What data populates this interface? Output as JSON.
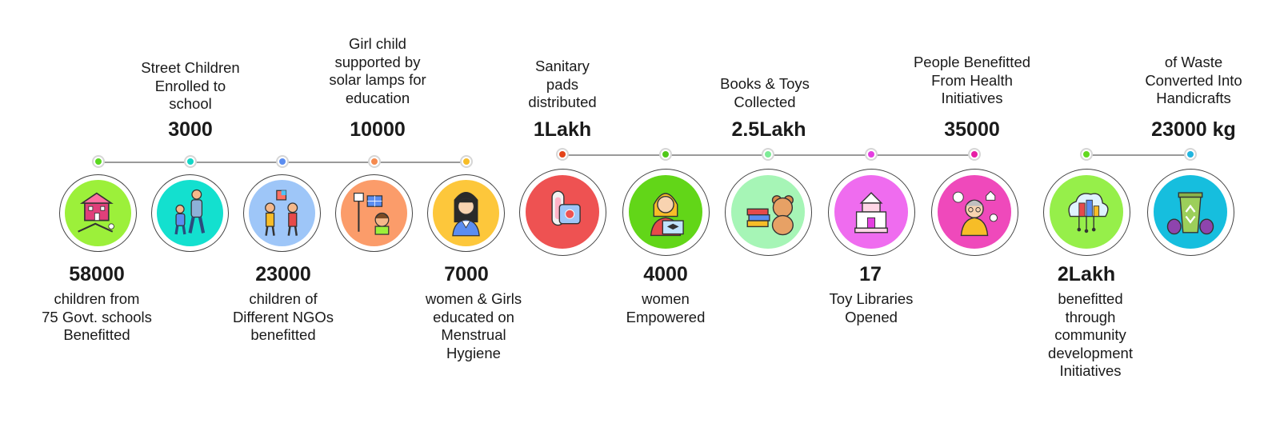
{
  "colors": {
    "line": "#9a9a9a",
    "text": "#1a1a1a"
  },
  "items": [
    {
      "value": "58000",
      "label": [
        "children from",
        "75 Govt. schools",
        "Benefitted"
      ],
      "color": "#9cf03a",
      "dot": "#5bd821",
      "icon": "school-playground-icon"
    },
    {
      "value": "3000",
      "label": [
        "Street Children",
        "Enrolled to",
        "school"
      ],
      "color": "#13e0cf",
      "dot": "#13d6c6",
      "icon": "parent-child-walking-icon"
    },
    {
      "value": "23000",
      "label": [
        "children of",
        "Different NGOs",
        "benefitted"
      ],
      "color": "#9ec6f8",
      "dot": "#5b8df0",
      "icon": "children-playing-icon"
    },
    {
      "value": "10000",
      "label": [
        "Girl child",
        "supported by",
        "solar lamps for",
        "education"
      ],
      "color": "#fb9c6a",
      "dot": "#f58a4f",
      "icon": "solar-lamp-girl-icon"
    },
    {
      "value": "7000",
      "label": [
        "women & Girls",
        "educated on",
        "Menstrual",
        "Hygiene"
      ],
      "color": "#fdc73b",
      "dot": "#f7bd27",
      "icon": "girl-graduate-icon"
    },
    {
      "value": "1Lakh",
      "label": [
        "Sanitary",
        "pads",
        "distributed"
      ],
      "color": "#ee5252",
      "dot": "#e4441a",
      "icon": "sanitary-pad-icon"
    },
    {
      "value": "4000",
      "label": [
        "women",
        "Empowered"
      ],
      "color": "#62d618",
      "dot": "#50c81a",
      "icon": "woman-laptop-icon"
    },
    {
      "value": "2.5Lakh",
      "label": [
        "Books & Toys",
        "Collected"
      ],
      "color": "#a6f5b6",
      "dot": "#7eeb97",
      "icon": "books-teddy-icon"
    },
    {
      "value": "17",
      "label": [
        "Toy Libraries",
        "Opened"
      ],
      "color": "#ef6cef",
      "dot": "#e43ee0",
      "icon": "toy-library-icon"
    },
    {
      "value": "35000",
      "label": [
        "People Benefitted",
        "From Health",
        "Initiatives"
      ],
      "color": "#ef49bb",
      "dot": "#e71ea5",
      "icon": "health-person-icon"
    },
    {
      "value": "2Lakh",
      "label": [
        "benefitted",
        "through",
        "community",
        "development",
        "Initiatives"
      ],
      "color": "#96ef4a",
      "dot": "#62d921",
      "icon": "cloud-city-icon"
    },
    {
      "value": "23000 kg",
      "label": [
        "of Waste",
        "Converted Into",
        "Handicrafts"
      ],
      "color": "#16bede",
      "dot": "#21b5df",
      "icon": "recycle-bin-icon"
    }
  ]
}
